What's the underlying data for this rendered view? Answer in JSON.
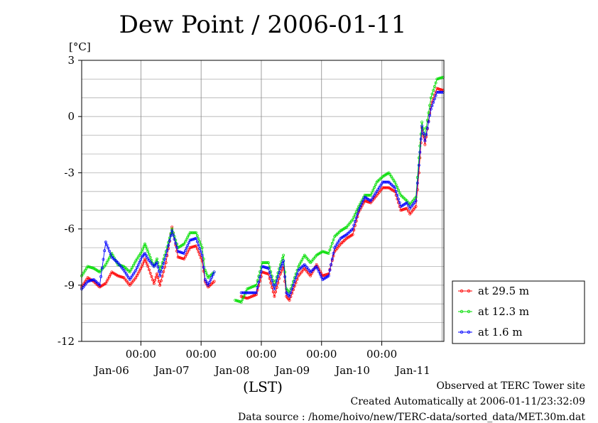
{
  "chart_data": {
    "type": "line",
    "title": "Dew Point / 2006-01-11",
    "ylabel": "[°C]",
    "xlabel": "(LST)",
    "ylim": [
      -12,
      3
    ],
    "yticks": [
      "3",
      "0",
      "-3",
      "-6",
      "-9",
      "-12"
    ],
    "xlim_days": [
      0,
      6
    ],
    "time_tick_label": "00:00",
    "date_labels": [
      "Jan-06",
      "Jan-07",
      "Jan-08",
      "Jan-09",
      "Jan-10",
      "Jan-11"
    ],
    "grid": true,
    "legend_position": "right",
    "series": [
      {
        "name": "at 29.5 m",
        "color": "#ff0000",
        "points": [
          [
            0.0,
            -9.1
          ],
          [
            0.1,
            -8.6
          ],
          [
            0.2,
            -8.8
          ],
          [
            0.3,
            -9.1
          ],
          [
            0.4,
            -8.9
          ],
          [
            0.5,
            -8.3
          ],
          [
            0.6,
            -8.5
          ],
          [
            0.7,
            -8.6
          ],
          [
            0.8,
            -9.0
          ],
          [
            0.9,
            -8.6
          ],
          [
            1.0,
            -8.0
          ],
          [
            1.05,
            -7.6
          ],
          [
            1.1,
            -8.0
          ],
          [
            1.2,
            -8.9
          ],
          [
            1.25,
            -8.4
          ],
          [
            1.3,
            -9.0
          ],
          [
            1.4,
            -7.8
          ],
          [
            1.5,
            -5.9
          ],
          [
            1.6,
            -7.5
          ],
          [
            1.7,
            -7.6
          ],
          [
            1.8,
            -7.0
          ],
          [
            1.9,
            -6.9
          ],
          [
            2.0,
            -7.7
          ],
          [
            2.05,
            -8.8
          ],
          [
            2.1,
            -9.1
          ],
          [
            2.2,
            -8.8
          ],
          [
            2.65,
            -9.6
          ],
          [
            2.75,
            -9.7
          ],
          [
            2.9,
            -9.5
          ],
          [
            3.0,
            -8.3
          ],
          [
            3.1,
            -8.4
          ],
          [
            3.2,
            -9.6
          ],
          [
            3.3,
            -8.4
          ],
          [
            3.35,
            -8.0
          ],
          [
            3.4,
            -9.6
          ],
          [
            3.45,
            -9.8
          ],
          [
            3.6,
            -8.5
          ],
          [
            3.7,
            -8.1
          ],
          [
            3.8,
            -8.5
          ],
          [
            3.9,
            -7.9
          ],
          [
            4.0,
            -8.5
          ],
          [
            4.1,
            -8.4
          ],
          [
            4.2,
            -7.2
          ],
          [
            4.3,
            -6.8
          ],
          [
            4.4,
            -6.5
          ],
          [
            4.5,
            -6.3
          ],
          [
            4.6,
            -5.1
          ],
          [
            4.7,
            -4.5
          ],
          [
            4.8,
            -4.6
          ],
          [
            4.9,
            -4.2
          ],
          [
            5.0,
            -3.8
          ],
          [
            5.1,
            -3.8
          ],
          [
            5.2,
            -4.0
          ],
          [
            5.3,
            -5.0
          ],
          [
            5.4,
            -4.9
          ],
          [
            5.45,
            -5.2
          ],
          [
            5.55,
            -4.8
          ],
          [
            5.6,
            -3.0
          ],
          [
            5.65,
            -0.6
          ],
          [
            5.7,
            -1.5
          ],
          [
            5.8,
            0.6
          ],
          [
            5.9,
            1.5
          ],
          [
            6.0,
            1.4
          ]
        ]
      },
      {
        "name": "at 12.3 m",
        "color": "#00dd00",
        "points": [
          [
            0.0,
            -8.5
          ],
          [
            0.1,
            -8.0
          ],
          [
            0.2,
            -8.1
          ],
          [
            0.3,
            -8.3
          ],
          [
            0.4,
            -7.9
          ],
          [
            0.5,
            -7.3
          ],
          [
            0.6,
            -7.9
          ],
          [
            0.7,
            -8.0
          ],
          [
            0.8,
            -8.3
          ],
          [
            0.9,
            -7.7
          ],
          [
            1.0,
            -7.2
          ],
          [
            1.05,
            -6.8
          ],
          [
            1.1,
            -7.2
          ],
          [
            1.2,
            -8.0
          ],
          [
            1.25,
            -7.6
          ],
          [
            1.3,
            -8.2
          ],
          [
            1.4,
            -7.2
          ],
          [
            1.5,
            -6.0
          ],
          [
            1.6,
            -7.0
          ],
          [
            1.7,
            -6.8
          ],
          [
            1.8,
            -6.2
          ],
          [
            1.9,
            -6.2
          ],
          [
            2.0,
            -7.0
          ],
          [
            2.05,
            -8.2
          ],
          [
            2.1,
            -8.6
          ],
          [
            2.2,
            -8.3
          ],
          [
            2.55,
            -9.8
          ],
          [
            2.65,
            -9.9
          ],
          [
            2.75,
            -9.2
          ],
          [
            2.9,
            -9.0
          ],
          [
            3.0,
            -7.8
          ],
          [
            3.1,
            -7.8
          ],
          [
            3.2,
            -9.0
          ],
          [
            3.3,
            -7.9
          ],
          [
            3.35,
            -7.4
          ],
          [
            3.4,
            -9.2
          ],
          [
            3.45,
            -9.4
          ],
          [
            3.6,
            -8.0
          ],
          [
            3.7,
            -7.4
          ],
          [
            3.8,
            -7.8
          ],
          [
            3.9,
            -7.4
          ],
          [
            4.0,
            -7.2
          ],
          [
            4.1,
            -7.3
          ],
          [
            4.2,
            -6.4
          ],
          [
            4.3,
            -6.1
          ],
          [
            4.4,
            -5.9
          ],
          [
            4.5,
            -5.5
          ],
          [
            4.6,
            -4.8
          ],
          [
            4.7,
            -4.2
          ],
          [
            4.8,
            -4.2
          ],
          [
            4.9,
            -3.5
          ],
          [
            5.0,
            -3.2
          ],
          [
            5.1,
            -3.0
          ],
          [
            5.2,
            -3.5
          ],
          [
            5.3,
            -4.2
          ],
          [
            5.4,
            -4.5
          ],
          [
            5.45,
            -4.7
          ],
          [
            5.55,
            -4.3
          ],
          [
            5.6,
            -2.2
          ],
          [
            5.65,
            -0.3
          ],
          [
            5.7,
            -1.0
          ],
          [
            5.8,
            1.0
          ],
          [
            5.9,
            2.0
          ],
          [
            6.0,
            2.1
          ]
        ]
      },
      {
        "name": "at 1.6 m",
        "color": "#0000ff",
        "points": [
          [
            0.0,
            -9.2
          ],
          [
            0.1,
            -8.8
          ],
          [
            0.2,
            -8.7
          ],
          [
            0.3,
            -9.0
          ],
          [
            0.4,
            -6.7
          ],
          [
            0.5,
            -7.5
          ],
          [
            0.6,
            -7.8
          ],
          [
            0.7,
            -8.2
          ],
          [
            0.8,
            -8.7
          ],
          [
            0.9,
            -8.2
          ],
          [
            1.0,
            -7.5
          ],
          [
            1.05,
            -7.3
          ],
          [
            1.1,
            -7.6
          ],
          [
            1.2,
            -8.0
          ],
          [
            1.25,
            -7.8
          ],
          [
            1.3,
            -8.5
          ],
          [
            1.4,
            -7.4
          ],
          [
            1.5,
            -6.1
          ],
          [
            1.6,
            -7.2
          ],
          [
            1.7,
            -7.3
          ],
          [
            1.8,
            -6.6
          ],
          [
            1.9,
            -6.5
          ],
          [
            2.0,
            -7.4
          ],
          [
            2.05,
            -8.7
          ],
          [
            2.1,
            -9.0
          ],
          [
            2.2,
            -8.3
          ],
          [
            2.65,
            -9.4
          ],
          [
            2.75,
            -9.4
          ],
          [
            2.9,
            -9.4
          ],
          [
            3.0,
            -8.0
          ],
          [
            3.1,
            -8.1
          ],
          [
            3.2,
            -9.2
          ],
          [
            3.3,
            -8.1
          ],
          [
            3.35,
            -7.7
          ],
          [
            3.4,
            -9.4
          ],
          [
            3.45,
            -9.6
          ],
          [
            3.6,
            -8.2
          ],
          [
            3.7,
            -7.9
          ],
          [
            3.8,
            -8.3
          ],
          [
            3.9,
            -8.0
          ],
          [
            4.0,
            -8.7
          ],
          [
            4.1,
            -8.5
          ],
          [
            4.2,
            -7.0
          ],
          [
            4.3,
            -6.5
          ],
          [
            4.4,
            -6.3
          ],
          [
            4.5,
            -6.0
          ],
          [
            4.6,
            -5.0
          ],
          [
            4.7,
            -4.3
          ],
          [
            4.8,
            -4.5
          ],
          [
            4.9,
            -4.0
          ],
          [
            5.0,
            -3.5
          ],
          [
            5.1,
            -3.5
          ],
          [
            5.2,
            -3.8
          ],
          [
            5.3,
            -4.8
          ],
          [
            5.4,
            -4.6
          ],
          [
            5.45,
            -4.9
          ],
          [
            5.55,
            -4.5
          ],
          [
            5.6,
            -2.6
          ],
          [
            5.65,
            -0.5
          ],
          [
            5.7,
            -1.3
          ],
          [
            5.8,
            0.4
          ],
          [
            5.9,
            1.3
          ],
          [
            6.0,
            1.3
          ]
        ]
      }
    ]
  },
  "footer": {
    "line1": "Observed at TERC Tower site",
    "line2": "Created Automatically at 2006-01-11/23:32:09",
    "line3": "Data source : /home/hoivo/new/TERC-data/sorted_data/MET.30m.dat"
  }
}
